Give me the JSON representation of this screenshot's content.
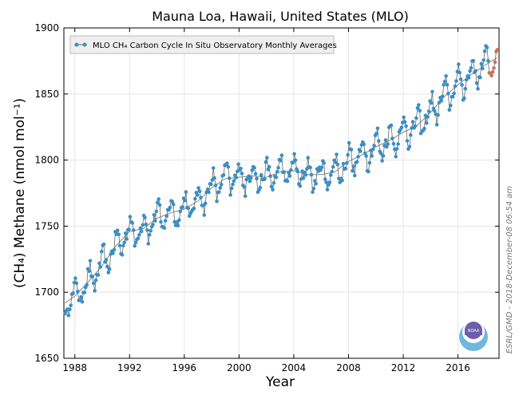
{
  "chart_data": {
    "type": "scatter",
    "title": "Mauna Loa, Hawaii, United States (MLO)",
    "xlabel": "Year",
    "ylabel": "(CH₄) Methane (nmol mol⁻¹)",
    "xlim": [
      1987.2,
      2019.0
    ],
    "ylim": [
      1650,
      1900
    ],
    "xticks": [
      1988,
      1992,
      1996,
      2000,
      2004,
      2008,
      2012,
      2016
    ],
    "yticks": [
      1650,
      1700,
      1750,
      1800,
      1850,
      1900
    ],
    "legend": "MLO CH₄ Carbon Cycle In Situ Observatory Monthly Averages",
    "legend_position": "top-left",
    "credit": "ESRL/GMD - 2018-December-08 06:54 am",
    "logo_text": "NOAA",
    "colors": {
      "monthly": "#3a8fc4",
      "preliminary": "#c8745a",
      "trend": "#888888",
      "line": "#666666"
    },
    "trend_anchors": [
      [
        1987.3,
        1692
      ],
      [
        1988.0,
        1697
      ],
      [
        1989.0,
        1708
      ],
      [
        1990.0,
        1720
      ],
      [
        1991.0,
        1735
      ],
      [
        1992.0,
        1746
      ],
      [
        1993.0,
        1748
      ],
      [
        1994.0,
        1756
      ],
      [
        1995.0,
        1760
      ],
      [
        1996.0,
        1763
      ],
      [
        1997.0,
        1769
      ],
      [
        1998.0,
        1779
      ],
      [
        1999.0,
        1786
      ],
      [
        2000.0,
        1787
      ],
      [
        2001.0,
        1788
      ],
      [
        2002.0,
        1787
      ],
      [
        2003.0,
        1791
      ],
      [
        2004.0,
        1792
      ],
      [
        2005.0,
        1789
      ],
      [
        2006.0,
        1789
      ],
      [
        2007.0,
        1791
      ],
      [
        2008.0,
        1799
      ],
      [
        2009.0,
        1804
      ],
      [
        2010.0,
        1810
      ],
      [
        2011.0,
        1815
      ],
      [
        2012.0,
        1821
      ],
      [
        2013.0,
        1826
      ],
      [
        2014.0,
        1836
      ],
      [
        2015.0,
        1848
      ],
      [
        2016.0,
        1857
      ],
      [
        2017.0,
        1865
      ],
      [
        2018.0,
        1872
      ],
      [
        2018.95,
        1878
      ]
    ],
    "seasonal_amplitude": 11,
    "monthly_start": 1987.29,
    "preliminary_start": 2018.25
  }
}
